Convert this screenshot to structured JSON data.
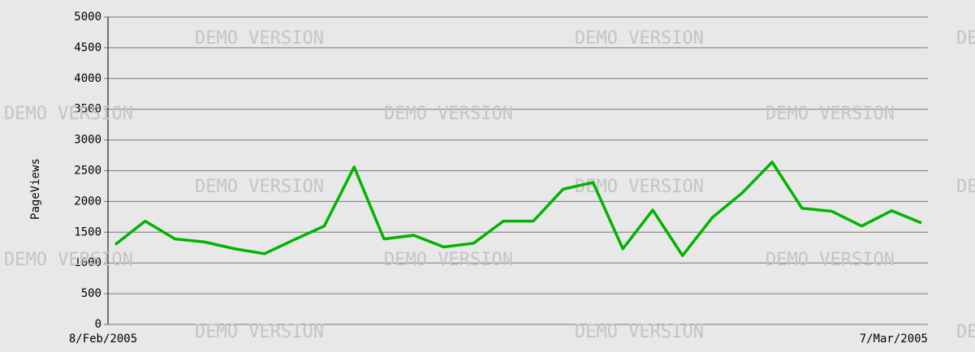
{
  "chart_data": {
    "type": "line",
    "watermark": "DEMO VERSION",
    "ylabel": "PageViews",
    "categories": [
      "8/Feb/2005",
      null,
      null,
      null,
      null,
      null,
      null,
      null,
      null,
      null,
      null,
      null,
      null,
      null,
      null,
      null,
      null,
      null,
      null,
      null,
      null,
      null,
      null,
      null,
      null,
      null,
      null,
      "7/Mar/2005"
    ],
    "series": [
      {
        "name": "PageViews",
        "color": "#00b400",
        "values": [
          1300,
          1680,
          1390,
          1340,
          1230,
          1150,
          1380,
          1600,
          2560,
          1390,
          1450,
          1260,
          1320,
          1680,
          1680,
          2200,
          2310,
          1230,
          1860,
          1120,
          1740,
          2140,
          2640,
          1890,
          1840,
          1600,
          1850,
          1650
        ]
      }
    ],
    "ylim": [
      0,
      5000
    ],
    "yticks": [
      0,
      500,
      1000,
      1500,
      2000,
      2500,
      3000,
      3500,
      4000,
      4500,
      5000
    ],
    "grid": true
  }
}
